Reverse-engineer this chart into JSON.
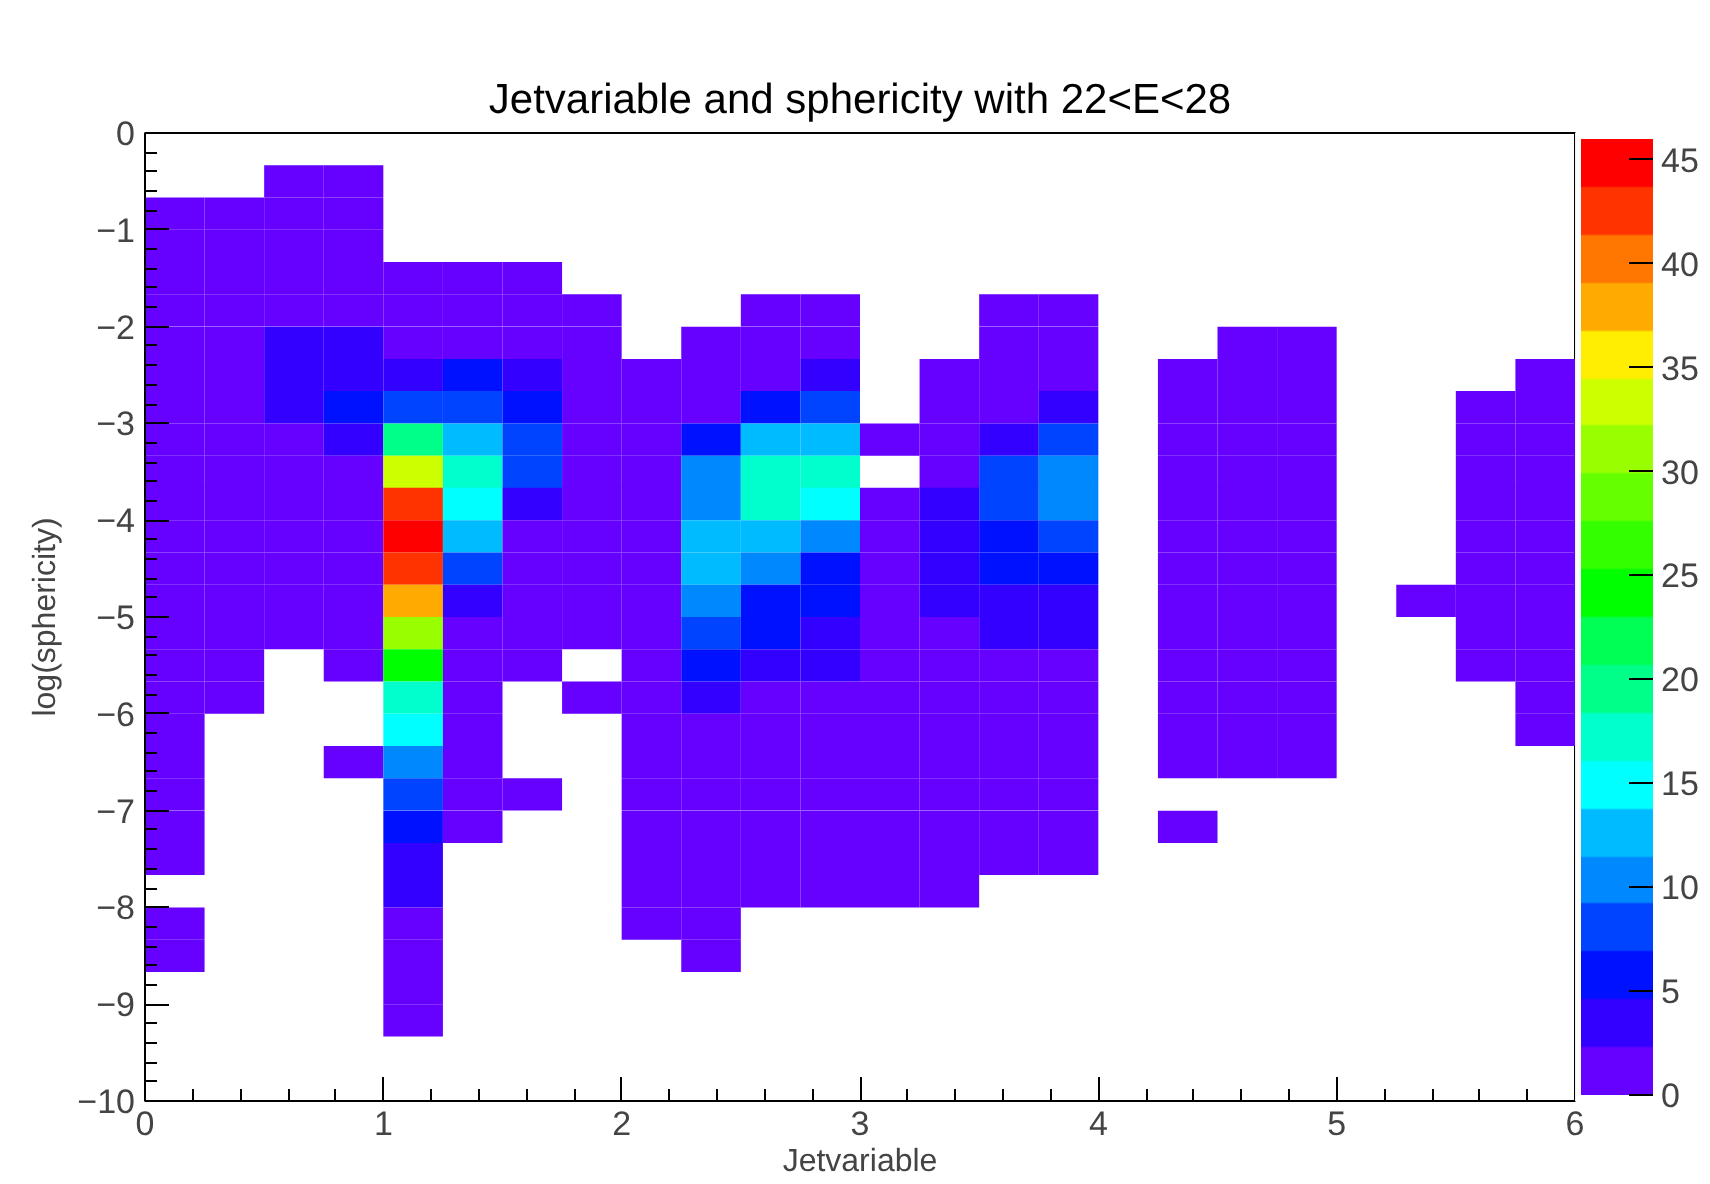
{
  "chart_data": {
    "type": "heatmap",
    "title": "Jetvariable and sphericity with 22<E<28",
    "xlabel": "Jetvariable",
    "ylabel": "log(sphericity)",
    "x": [
      0.125,
      0.375,
      0.625,
      0.875,
      1.125,
      1.375,
      1.625,
      1.875,
      2.125,
      2.375,
      2.625,
      2.875,
      3.125,
      3.375,
      3.625,
      3.875,
      4.125,
      4.375,
      4.625,
      4.875,
      5.125,
      5.375,
      5.625,
      5.875
    ],
    "y": [
      -0.5,
      -0.833,
      -1.167,
      -1.5,
      -1.833,
      -2.167,
      -2.5,
      -2.833,
      -3.167,
      -3.5,
      -3.833,
      -4.167,
      -4.5,
      -4.833,
      -5.167,
      -5.5,
      -5.833,
      -6.167,
      -6.5,
      -6.833,
      -7.167,
      -7.5,
      -7.833,
      -8.167,
      -8.5,
      -8.833,
      -9.167
    ],
    "cells": [
      [
        null,
        null,
        1,
        1,
        null,
        null,
        null,
        null,
        null,
        null,
        null,
        null,
        null,
        null,
        null,
        null,
        null,
        null,
        null,
        null,
        null,
        null,
        null,
        null
      ],
      [
        1,
        1,
        1,
        1,
        null,
        null,
        null,
        null,
        null,
        null,
        null,
        null,
        null,
        null,
        null,
        null,
        null,
        null,
        null,
        null,
        null,
        null,
        null,
        null
      ],
      [
        1,
        1,
        1,
        1,
        null,
        null,
        null,
        null,
        null,
        null,
        null,
        null,
        null,
        null,
        null,
        null,
        null,
        null,
        null,
        null,
        null,
        null,
        null,
        null
      ],
      [
        1,
        1,
        1,
        1,
        1,
        1,
        1,
        null,
        null,
        null,
        null,
        null,
        null,
        null,
        null,
        null,
        null,
        null,
        null,
        null,
        null,
        null,
        null,
        null
      ],
      [
        1,
        1,
        1,
        1,
        1,
        1,
        1,
        1,
        null,
        null,
        1,
        1,
        null,
        null,
        1,
        1,
        null,
        null,
        null,
        null,
        null,
        null,
        null,
        null
      ],
      [
        1,
        1,
        3,
        3,
        1,
        1,
        1,
        1,
        null,
        1,
        1,
        1,
        null,
        null,
        1,
        1,
        null,
        null,
        1,
        1,
        null,
        null,
        null,
        null
      ],
      [
        1,
        1,
        3,
        3,
        3,
        6,
        3,
        1,
        1,
        1,
        1,
        3,
        null,
        1,
        1,
        1,
        null,
        1,
        1,
        1,
        null,
        null,
        null,
        1
      ],
      [
        1,
        1,
        3,
        6,
        8,
        8,
        6,
        1,
        1,
        1,
        6,
        8,
        null,
        1,
        1,
        3,
        null,
        1,
        1,
        1,
        null,
        null,
        1,
        1
      ],
      [
        1,
        1,
        1,
        3,
        20,
        13,
        8,
        1,
        1,
        6,
        13,
        13,
        1,
        1,
        3,
        8,
        null,
        1,
        1,
        1,
        null,
        null,
        1,
        1
      ],
      [
        1,
        1,
        1,
        1,
        33,
        17,
        8,
        1,
        1,
        10,
        17,
        17,
        null,
        1,
        8,
        10,
        null,
        1,
        1,
        1,
        null,
        null,
        1,
        1
      ],
      [
        1,
        1,
        1,
        1,
        43,
        15,
        3,
        1,
        1,
        10,
        17,
        15,
        1,
        3,
        8,
        10,
        null,
        1,
        1,
        1,
        null,
        null,
        1,
        1
      ],
      [
        1,
        1,
        1,
        1,
        45,
        13,
        1,
        1,
        1,
        13,
        13,
        10,
        1,
        3,
        6,
        8,
        null,
        1,
        1,
        1,
        null,
        null,
        1,
        1
      ],
      [
        1,
        1,
        1,
        1,
        43,
        8,
        1,
        1,
        1,
        13,
        10,
        6,
        1,
        3,
        6,
        6,
        null,
        1,
        1,
        1,
        null,
        null,
        1,
        1
      ],
      [
        1,
        1,
        1,
        1,
        38,
        3,
        1,
        1,
        1,
        10,
        6,
        6,
        1,
        3,
        3,
        3,
        null,
        1,
        1,
        1,
        null,
        1,
        1,
        1
      ],
      [
        1,
        1,
        1,
        1,
        31,
        1,
        1,
        1,
        1,
        8,
        6,
        3,
        1,
        1,
        3,
        3,
        null,
        1,
        1,
        1,
        null,
        null,
        1,
        1
      ],
      [
        1,
        1,
        null,
        1,
        24,
        1,
        1,
        null,
        1,
        6,
        3,
        3,
        1,
        1,
        1,
        1,
        null,
        1,
        1,
        1,
        null,
        null,
        1,
        1
      ],
      [
        1,
        1,
        null,
        null,
        17,
        1,
        null,
        1,
        1,
        3,
        1,
        1,
        1,
        1,
        1,
        1,
        null,
        1,
        1,
        1,
        null,
        null,
        null,
        1
      ],
      [
        1,
        null,
        null,
        null,
        15,
        1,
        null,
        null,
        1,
        1,
        1,
        1,
        1,
        1,
        1,
        1,
        null,
        1,
        1,
        1,
        null,
        null,
        null,
        1
      ],
      [
        1,
        null,
        null,
        1,
        10,
        1,
        null,
        null,
        1,
        1,
        1,
        1,
        1,
        1,
        1,
        1,
        null,
        1,
        1,
        1,
        null,
        null,
        null,
        null
      ],
      [
        1,
        null,
        null,
        null,
        8,
        1,
        1,
        null,
        1,
        1,
        1,
        1,
        1,
        1,
        1,
        1,
        null,
        null,
        null,
        null,
        null,
        null,
        null,
        null
      ],
      [
        1,
        null,
        null,
        null,
        6,
        1,
        null,
        null,
        1,
        1,
        1,
        1,
        1,
        1,
        1,
        1,
        null,
        1,
        null,
        null,
        null,
        null,
        null,
        null
      ],
      [
        1,
        null,
        null,
        null,
        3,
        null,
        null,
        null,
        1,
        1,
        1,
        1,
        1,
        1,
        1,
        1,
        null,
        null,
        null,
        null,
        null,
        null,
        null,
        null
      ],
      [
        null,
        null,
        null,
        null,
        3,
        null,
        null,
        null,
        1,
        1,
        1,
        1,
        1,
        1,
        null,
        null,
        null,
        null,
        null,
        null,
        null,
        null,
        null,
        null
      ],
      [
        1,
        null,
        null,
        null,
        1,
        null,
        null,
        null,
        1,
        1,
        null,
        null,
        null,
        null,
        null,
        null,
        null,
        null,
        null,
        null,
        null,
        null,
        null,
        null
      ],
      [
        1,
        null,
        null,
        null,
        1,
        null,
        null,
        null,
        null,
        1,
        null,
        null,
        null,
        null,
        null,
        null,
        null,
        null,
        null,
        null,
        null,
        null,
        null,
        null
      ],
      [
        null,
        null,
        null,
        null,
        1,
        null,
        null,
        null,
        null,
        null,
        null,
        null,
        null,
        null,
        null,
        null,
        null,
        null,
        null,
        null,
        null,
        null,
        null,
        null
      ],
      [
        null,
        null,
        null,
        null,
        1,
        null,
        null,
        null,
        null,
        null,
        null,
        null,
        null,
        null,
        null,
        null,
        null,
        null,
        null,
        null,
        null,
        null,
        null,
        null
      ]
    ],
    "xlim": [
      0,
      6
    ],
    "xticks": [
      0,
      1,
      2,
      3,
      4,
      5,
      6
    ],
    "ylim": [
      -10,
      0
    ],
    "yticks": [
      -10,
      -9,
      -8,
      -7,
      -6,
      -5,
      -4,
      -3,
      -2,
      -1,
      0
    ],
    "clim": [
      0,
      46
    ],
    "cticks": [
      0,
      5,
      10,
      15,
      20,
      25,
      30,
      35,
      40,
      45
    ],
    "grid": false
  }
}
